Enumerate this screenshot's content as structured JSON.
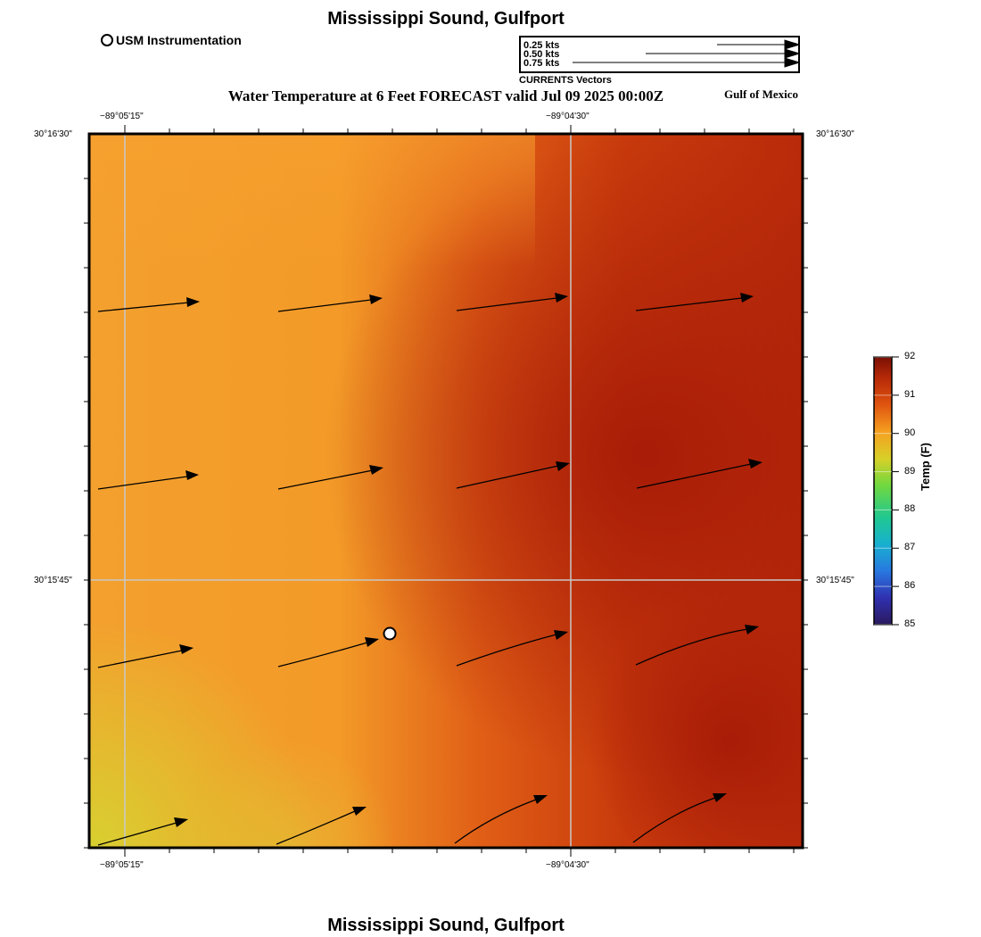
{
  "header": {
    "title": "Mississippi Sound, Gulfport",
    "subtitle": "Water Temperature at 6 Feet FORECAST valid Jul 09 2025 00:00Z",
    "region": "Gulf of Mexico"
  },
  "footer": {
    "title": "Mississippi Sound, Gulfport"
  },
  "legend": {
    "usm_label": "USM Instrumentation",
    "vector_scale": [
      "0.25 kts",
      "0.50 kts",
      "0.75 kts"
    ],
    "vector_caption": "CURRENTS Vectors"
  },
  "axes": {
    "top_lon_labels": [
      "−89°05'15\"",
      "−89°04'30\""
    ],
    "bottom_lon_labels": [
      "−89°05'15\"",
      "−89°04'30\""
    ],
    "left_lat_labels": [
      "30°16'30\"",
      "30°15'45\""
    ],
    "right_lat_labels": [
      "30°16'30\"",
      "30°15'45\""
    ]
  },
  "colorbar": {
    "title": "Temp (F)",
    "ticks": [
      "92",
      "91",
      "90",
      "89",
      "88",
      "87",
      "86",
      "85"
    ],
    "min": 85,
    "max": 92,
    "colors": [
      "#2a1a5e",
      "#3a4fd0",
      "#1fa0e0",
      "#22c8a0",
      "#7ad84a",
      "#d8d830",
      "#f5a020",
      "#e05010",
      "#a01808",
      "#7a1005"
    ]
  },
  "map": {
    "station": "USM Instrumentation",
    "currents": [
      {
        "row": 1,
        "col": 1
      },
      {
        "row": 1,
        "col": 2
      },
      {
        "row": 1,
        "col": 3
      },
      {
        "row": 1,
        "col": 4
      },
      {
        "row": 2,
        "col": 1
      },
      {
        "row": 2,
        "col": 2
      },
      {
        "row": 2,
        "col": 3
      },
      {
        "row": 2,
        "col": 4
      },
      {
        "row": 3,
        "col": 1
      },
      {
        "row": 3,
        "col": 2
      },
      {
        "row": 3,
        "col": 3
      },
      {
        "row": 3,
        "col": 4
      },
      {
        "row": 4,
        "col": 1
      },
      {
        "row": 4,
        "col": 2
      },
      {
        "row": 4,
        "col": 3
      },
      {
        "row": 4,
        "col": 4
      }
    ]
  }
}
